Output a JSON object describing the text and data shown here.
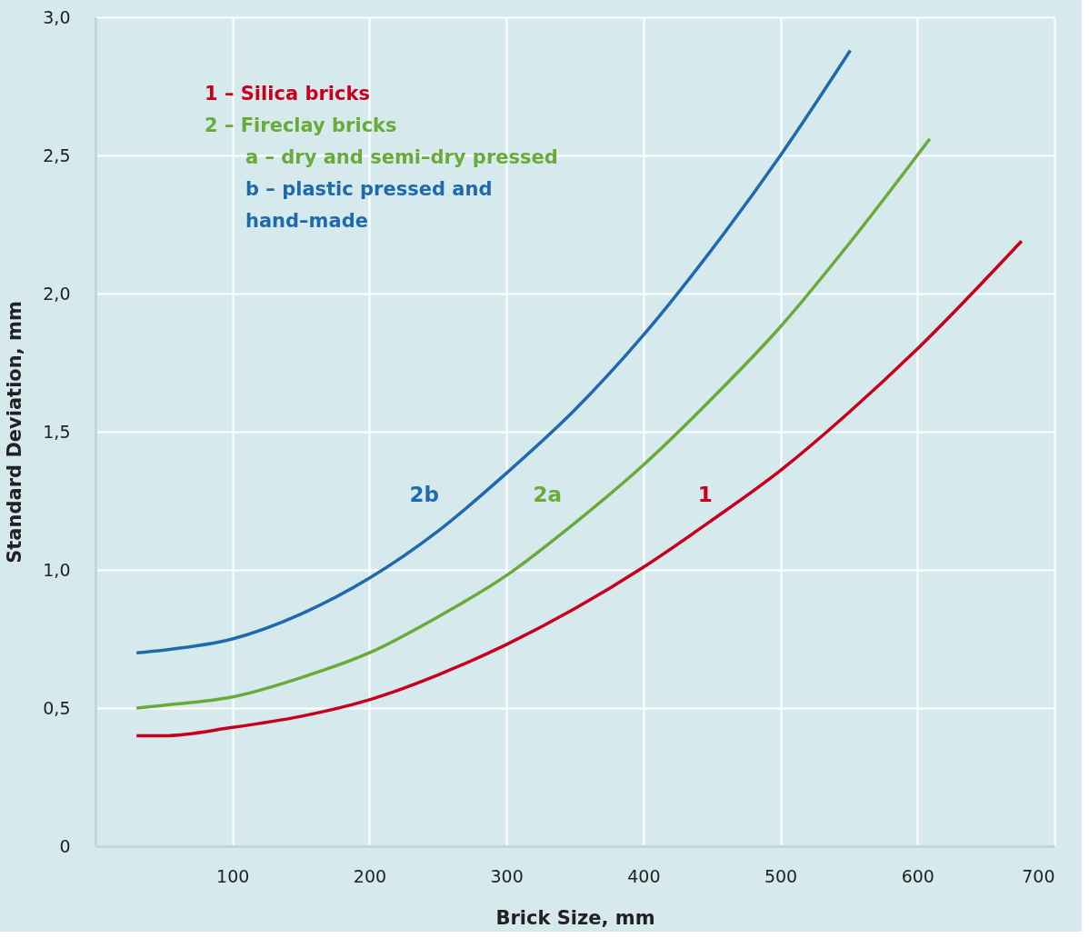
{
  "chart_data": {
    "type": "line",
    "xlabel": "Brick Size, mm",
    "ylabel": "Standard Deviation, mm",
    "xlim": [
      0,
      700
    ],
    "xticks": [
      100,
      200,
      300,
      400,
      500,
      600,
      700
    ],
    "ylim": [
      0,
      3
    ],
    "yticks": [
      0,
      {
        "value": 0.5,
        "label": "0,5"
      },
      {
        "value": 1,
        "label": "1,0"
      },
      {
        "value": 1.5,
        "label": "1,5"
      },
      {
        "value": 2,
        "label": "2,0"
      },
      {
        "value": 2.5,
        "label": "2,5"
      },
      {
        "value": 3,
        "label": "3,0"
      }
    ],
    "grid": true,
    "legend": false,
    "marker": "none",
    "line_style": "solid",
    "annotations": [
      "1 – Silica bricks",
      "2 – Fireclay bricks",
      "a –  dry and semi–dry pressed",
      "b –  plastic pressed and hand–made"
    ],
    "series": [
      {
        "name": "2b",
        "color": "#1f6aad",
        "x": [
          30,
          50,
          100,
          150,
          200,
          250,
          300,
          350,
          400,
          450,
          500,
          551
        ],
        "values": [
          0.7,
          0.71,
          0.75,
          0.84,
          0.97,
          1.14,
          1.35,
          1.58,
          1.85,
          2.16,
          2.5,
          2.88
        ]
      },
      {
        "name": "2a",
        "color": "#6aaa3a",
        "x": [
          30,
          50,
          100,
          150,
          200,
          250,
          300,
          350,
          400,
          450,
          500,
          550,
          609
        ],
        "values": [
          0.5,
          0.51,
          0.54,
          0.61,
          0.7,
          0.83,
          0.98,
          1.17,
          1.38,
          1.62,
          1.88,
          2.18,
          2.56
        ]
      },
      {
        "name": "1",
        "color": "#c8001e",
        "x": [
          30,
          50,
          100,
          150,
          200,
          250,
          300,
          350,
          400,
          450,
          500,
          550,
          600,
          676
        ],
        "values": [
          0.4,
          0.4,
          0.43,
          0.47,
          0.53,
          0.62,
          0.73,
          0.86,
          1.01,
          1.18,
          1.36,
          1.57,
          1.8,
          2.19
        ]
      }
    ]
  }
}
